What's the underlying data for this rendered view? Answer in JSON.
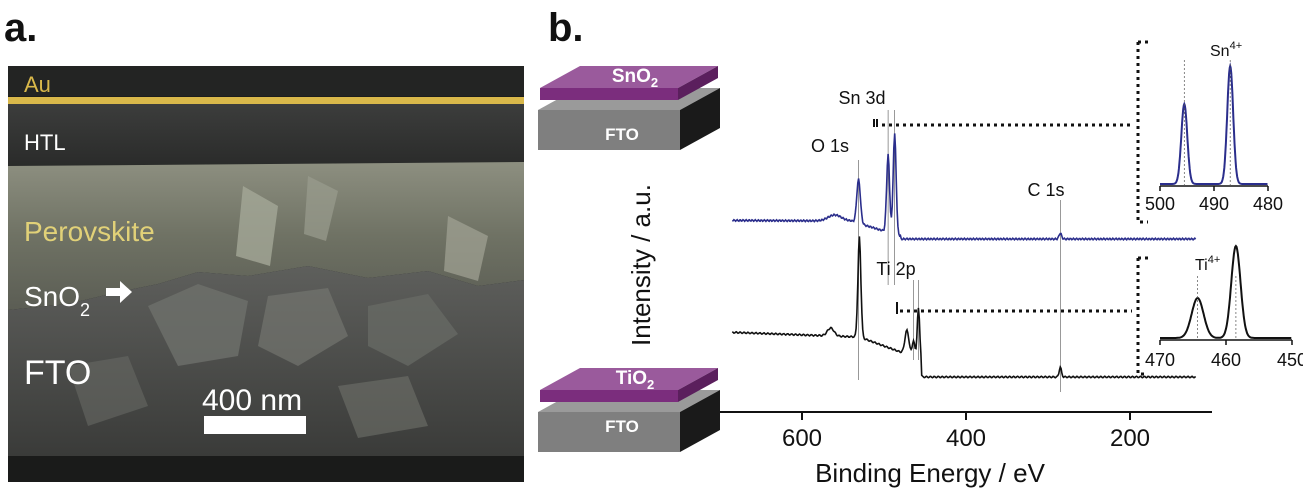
{
  "panel_a": {
    "label": "a.",
    "layers": {
      "au": "Au",
      "htl": "HTL",
      "perovskite": "Perovskite",
      "sno2_base": "SnO",
      "sno2_sub": "2",
      "fto": "FTO"
    },
    "scale_bar": "400 nm",
    "colors": {
      "au": "#d9b84a",
      "perovskite": "#e1d178"
    }
  },
  "panel_b": {
    "label": "b.",
    "y_axis_label": "Intensity / a.u.",
    "x_axis_label": "Binding Energy / eV",
    "x_ticks": [
      600,
      400,
      200
    ],
    "schematic_top": {
      "layer": "SnO",
      "layer_sub": "2",
      "substrate": "FTO"
    },
    "schematic_bottom": {
      "layer": "TiO",
      "layer_sub": "2",
      "substrate": "FTO"
    },
    "peak_labels": {
      "o1s": "O 1s",
      "sn3d": "Sn 3d",
      "ti2p": "Ti 2p",
      "c1s": "C 1s"
    },
    "inset_top": {
      "label_base": "Sn",
      "label_sup": "4+",
      "x_ticks": [
        500,
        490,
        480
      ]
    },
    "inset_bottom": {
      "label_base": "Ti",
      "label_sup": "4+",
      "x_ticks": [
        470,
        460,
        450
      ]
    },
    "colors": {
      "sno2_trace": "#2b2e8c",
      "tio2_trace": "#111111",
      "schematic_layer": "#7b2d7d",
      "schematic_substrate": "#808080"
    }
  },
  "chart_data": [
    {
      "type": "line",
      "title": "",
      "xlabel": "Binding Energy / eV",
      "ylabel": "Intensity / a.u.",
      "xlim": [
        700,
        100
      ],
      "x_ticks": [
        600,
        400,
        200
      ],
      "series": [
        {
          "name": "SnO2",
          "peaks": [
            {
              "label": "O 1s",
              "x": 531
            },
            {
              "label": "Sn 3d",
              "x": 495
            },
            {
              "label": "Sn 3d",
              "x": 487
            },
            {
              "label": "C 1s",
              "x": 285
            }
          ]
        },
        {
          "name": "TiO2",
          "peaks": [
            {
              "label": "O 1s",
              "x": 530
            },
            {
              "label": "Ti 2p",
              "x": 464
            },
            {
              "label": "Ti 2p",
              "x": 458
            },
            {
              "label": "C 1s",
              "x": 285
            }
          ]
        }
      ]
    },
    {
      "type": "line",
      "title": "Sn4+",
      "xlim": [
        500,
        480
      ],
      "x_ticks": [
        500,
        490,
        480
      ],
      "peaks": [
        495.5,
        487.0
      ]
    },
    {
      "type": "line",
      "title": "Ti4+",
      "xlim": [
        470,
        450
      ],
      "x_ticks": [
        470,
        460,
        450
      ],
      "peaks": [
        464.3,
        458.5
      ]
    }
  ]
}
